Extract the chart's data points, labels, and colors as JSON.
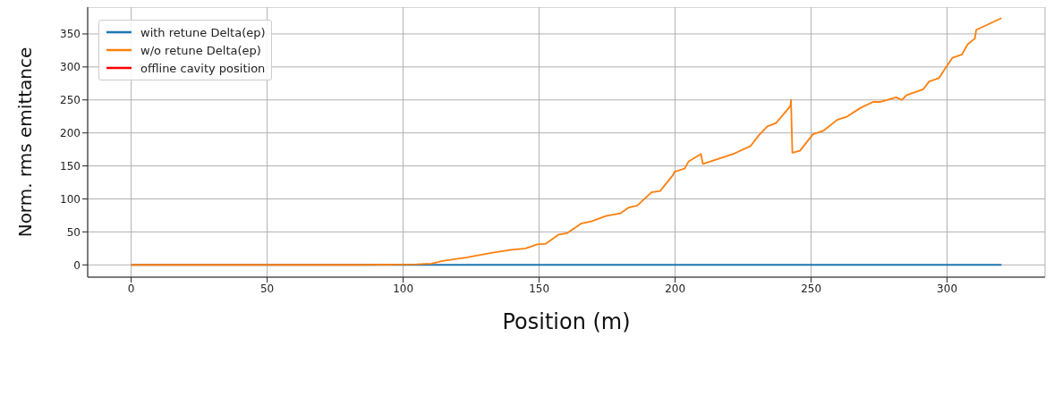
{
  "chart_data": {
    "type": "line",
    "xlabel": "Position (m)",
    "ylabel": "Norm. rms emittance",
    "xlim": [
      -16,
      336
    ],
    "ylim": [
      -18.6,
      390.6
    ],
    "xticks": [
      0,
      50,
      100,
      150,
      200,
      250,
      300
    ],
    "yticks": [
      0,
      50,
      100,
      150,
      200,
      250,
      300,
      350
    ],
    "grid": true,
    "legend": "top left",
    "series": [
      {
        "name": "with retune Delta(ep)",
        "color": "#1f77b4",
        "x": [
          0,
          320
        ],
        "values": [
          0,
          0
        ]
      },
      {
        "name": "w/o retune Delta(ep)",
        "color": "#ff7f0e",
        "x": [
          0,
          50,
          86,
          105,
          110.4,
          114.5,
          123,
          132.4,
          139.8,
          145,
          149.3,
          152.4,
          157.2,
          160.3,
          165.6,
          169.2,
          174.5,
          179.8,
          183,
          186.1,
          191.3,
          194.5,
          199.2,
          199.8,
          203.5,
          205,
          209.5,
          210.2,
          221.9,
          227.7,
          230.7,
          233.9,
          237.1,
          240.8,
          242.4,
          242.6,
          243.1,
          245.9,
          250.7,
          254.4,
          259.7,
          262.9,
          268.2,
          272.8,
          275.5,
          281.3,
          283.4,
          285,
          291.2,
          293.4,
          297,
          299.7,
          302,
          305.5,
          307.5,
          310.2,
          310.7,
          320
        ],
        "values": [
          0,
          0,
          0,
          1,
          2,
          6,
          11,
          18,
          23,
          25,
          31,
          32,
          46,
          48,
          63,
          66,
          74,
          78,
          87,
          90,
          110,
          112,
          136,
          141,
          146,
          157,
          168,
          153,
          169,
          180,
          196,
          210,
          215,
          233,
          241,
          250,
          170,
          173,
          198,
          203,
          220,
          224,
          238,
          247,
          247,
          254,
          250,
          257,
          266,
          278,
          283,
          300,
          314,
          319,
          334,
          343,
          356,
          374
        ]
      },
      {
        "name": "offline cavity position",
        "color": "#ff0000"
      }
    ]
  }
}
